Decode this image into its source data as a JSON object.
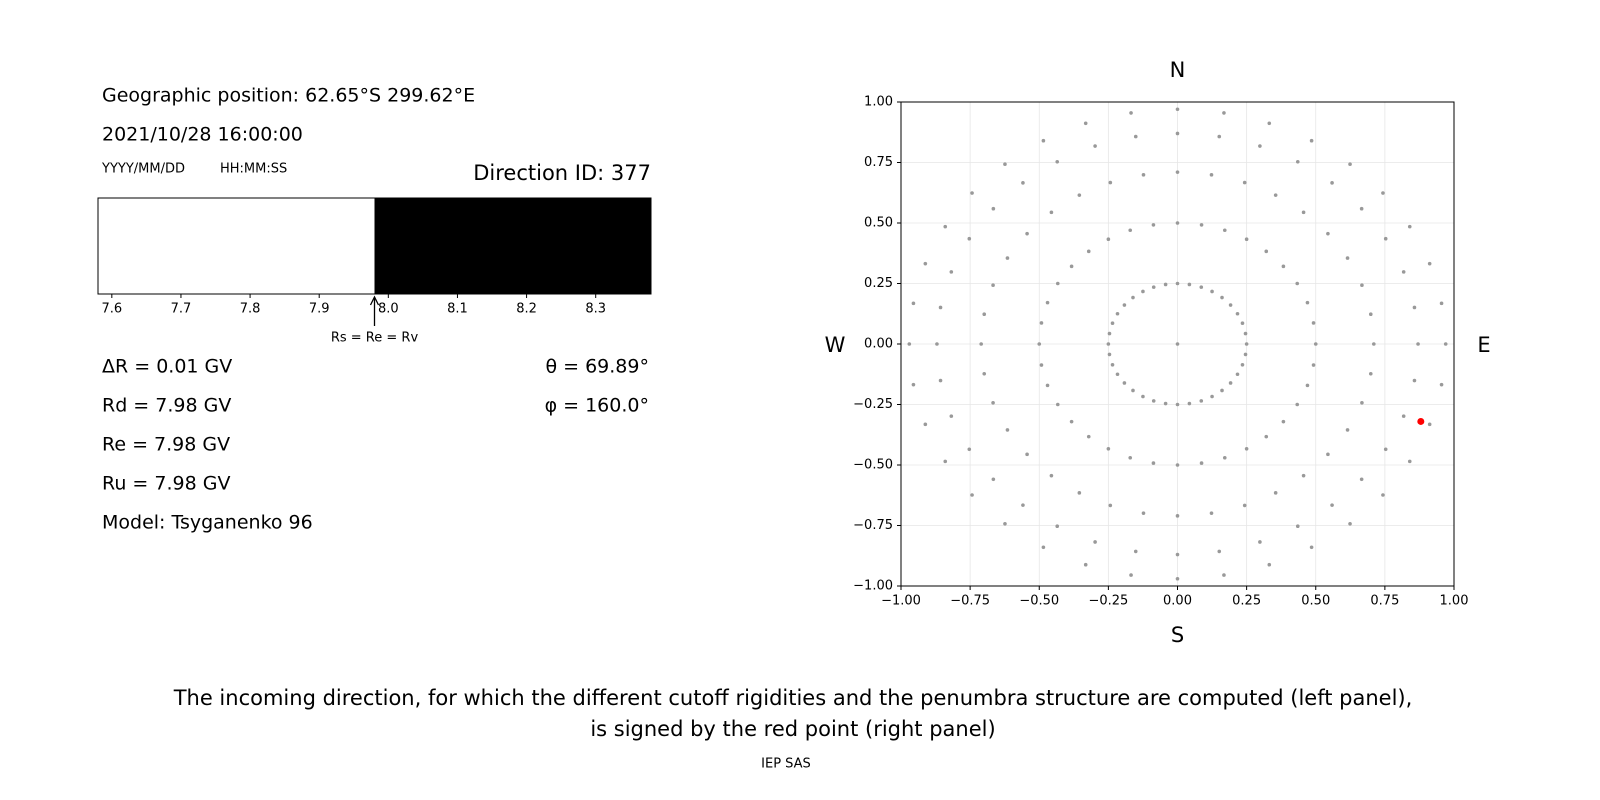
{
  "info": {
    "position": "Geographic position: 62.65°S 299.62°E",
    "datetime": "2021/10/28 16:00:00",
    "date_format": "YYYY/MM/DD",
    "time_format": "HH:MM:SS",
    "direction": "Direction ID: 377",
    "lines": [
      "ΔR = 0.01 GV",
      "Rd = 7.98 GV",
      "Re = 7.98 GV",
      "Ru = 7.98 GV",
      "Model: Tsyganenko 96"
    ],
    "angles": [
      "θ = 69.89°",
      "φ = 160.0°"
    ]
  },
  "chart_data": [
    {
      "type": "penumbra",
      "xlim": [
        7.58,
        8.38
      ],
      "xticks": [
        7.6,
        7.7,
        7.8,
        7.9,
        {
          "value": 8,
          "label": "8.0"
        },
        8.1,
        8.2,
        8.3
      ],
      "boundary": 7.98,
      "boundary_label": "Rs = Re = Rv",
      "colors": [
        "#ffffff",
        "#000000"
      ]
    },
    {
      "type": "scatter",
      "xlim": [
        -1,
        1
      ],
      "ylim": [
        -1,
        1
      ],
      "xticks": [
        {
          "value": -1,
          "label": "−1.00"
        },
        {
          "value": -0.75,
          "label": "−0.75"
        },
        {
          "value": -0.5,
          "label": "−0.50"
        },
        {
          "value": -0.25,
          "label": "−0.25"
        },
        {
          "value": 0,
          "label": "0.00"
        },
        {
          "value": 0.25,
          "label": "0.25"
        },
        {
          "value": 0.5,
          "label": "0.50"
        },
        {
          "value": 0.75,
          "label": "0.75"
        },
        {
          "value": 1,
          "label": "1.00"
        }
      ],
      "yticks": [
        {
          "value": -1,
          "label": "−1.00"
        },
        {
          "value": -0.75,
          "label": "−0.75"
        },
        {
          "value": -0.5,
          "label": "−0.50"
        },
        {
          "value": -0.25,
          "label": "−0.25"
        },
        {
          "value": 0,
          "label": "0.00"
        },
        {
          "value": 0.25,
          "label": "0.25"
        },
        {
          "value": 0.5,
          "label": "0.50"
        },
        {
          "value": 0.75,
          "label": "0.75"
        },
        {
          "value": 1,
          "label": "1.00"
        }
      ],
      "grid": true,
      "compass": {
        "N": "N",
        "S": "S",
        "W": "W",
        "E": "E"
      },
      "series": [
        {
          "color": "#999999",
          "x": [
            0,
            0,
            0.043,
            0.086,
            0.125,
            0.161,
            0.192,
            0.217,
            0.235,
            0.246,
            0.25,
            0.246,
            0.235,
            0.217,
            0.192,
            0.161,
            0.125,
            0.086,
            0.043,
            0,
            -0.043,
            -0.086,
            -0.125,
            -0.161,
            -0.192,
            -0.217,
            -0.235,
            -0.246,
            -0.25,
            -0.246,
            -0.235,
            -0.217,
            -0.192,
            -0.161,
            -0.125,
            -0.086,
            -0.043,
            0,
            0.087,
            0.171,
            0.25,
            0.321,
            0.383,
            0.433,
            0.47,
            0.492,
            0.5,
            0.492,
            0.47,
            0.433,
            0.383,
            0.321,
            0.25,
            0.171,
            0.087,
            0,
            -0.087,
            -0.171,
            -0.25,
            -0.321,
            -0.383,
            -0.433,
            -0.47,
            -0.492,
            -0.5,
            -0.492,
            -0.47,
            -0.433,
            -0.383,
            -0.321,
            -0.25,
            -0.171,
            -0.087,
            0,
            0.123,
            0.243,
            0.355,
            0.456,
            0.544,
            0.615,
            0.667,
            0.699,
            0.71,
            0.699,
            0.667,
            0.615,
            0.544,
            0.456,
            0.355,
            0.243,
            0.123,
            0,
            -0.123,
            -0.243,
            -0.355,
            -0.456,
            -0.544,
            -0.615,
            -0.667,
            -0.699,
            -0.71,
            -0.699,
            -0.667,
            -0.615,
            -0.544,
            -0.456,
            -0.355,
            -0.243,
            -0.123,
            0,
            0.151,
            0.298,
            0.435,
            0.559,
            0.666,
            0.753,
            0.818,
            0.857,
            0.87,
            0.857,
            0.818,
            0.753,
            0.666,
            0.559,
            0.435,
            0.298,
            0.151,
            0,
            -0.151,
            -0.298,
            -0.435,
            -0.559,
            -0.666,
            -0.753,
            -0.818,
            -0.857,
            -0.87,
            -0.857,
            -0.818,
            -0.753,
            -0.666,
            -0.559,
            -0.435,
            -0.298,
            -0.151,
            0,
            0.168,
            0.332,
            0.485,
            0.624,
            0.743,
            0.84,
            0.912,
            0.955,
            0.97,
            0.955,
            0.912,
            0.84,
            0.743,
            0.624,
            0.485,
            0.332,
            0.168,
            0,
            -0.168,
            -0.332,
            -0.485,
            -0.624,
            -0.743,
            -0.84,
            -0.912,
            -0.955,
            -0.97,
            -0.955,
            -0.912,
            -0.84,
            -0.743,
            -0.624,
            -0.485,
            -0.332,
            -0.168
          ],
          "y": [
            0,
            0.25,
            0.246,
            0.235,
            0.217,
            0.192,
            0.161,
            0.125,
            0.086,
            0.043,
            0,
            -0.043,
            -0.086,
            -0.125,
            -0.161,
            -0.192,
            -0.217,
            -0.235,
            -0.246,
            -0.25,
            -0.246,
            -0.235,
            -0.217,
            -0.192,
            -0.161,
            -0.125,
            -0.086,
            -0.043,
            0,
            0.043,
            0.086,
            0.125,
            0.161,
            0.192,
            0.217,
            0.235,
            0.246,
            0.5,
            0.492,
            0.47,
            0.433,
            0.383,
            0.321,
            0.25,
            0.171,
            0.087,
            0,
            -0.087,
            -0.171,
            -0.25,
            -0.321,
            -0.383,
            -0.433,
            -0.47,
            -0.492,
            -0.5,
            -0.492,
            -0.47,
            -0.433,
            -0.383,
            -0.321,
            -0.25,
            -0.171,
            -0.087,
            0,
            0.087,
            0.171,
            0.25,
            0.321,
            0.383,
            0.433,
            0.47,
            0.492,
            0.71,
            0.699,
            0.667,
            0.615,
            0.544,
            0.456,
            0.355,
            0.243,
            0.123,
            0,
            -0.123,
            -0.243,
            -0.355,
            -0.456,
            -0.544,
            -0.615,
            -0.667,
            -0.699,
            -0.71,
            -0.699,
            -0.667,
            -0.615,
            -0.544,
            -0.456,
            -0.355,
            -0.243,
            -0.123,
            0,
            0.123,
            0.243,
            0.355,
            0.456,
            0.544,
            0.615,
            0.667,
            0.699,
            0.87,
            0.857,
            0.818,
            0.753,
            0.666,
            0.559,
            0.435,
            0.298,
            0.151,
            0,
            -0.151,
            -0.298,
            -0.435,
            -0.559,
            -0.666,
            -0.753,
            -0.818,
            -0.857,
            -0.87,
            -0.857,
            -0.818,
            -0.753,
            -0.666,
            -0.559,
            -0.435,
            -0.298,
            -0.151,
            0,
            0.151,
            0.298,
            0.435,
            0.559,
            0.666,
            0.753,
            0.818,
            0.857,
            0.97,
            0.955,
            0.912,
            0.84,
            0.743,
            0.624,
            0.485,
            0.332,
            0.168,
            0,
            -0.168,
            -0.332,
            -0.485,
            -0.624,
            -0.743,
            -0.84,
            -0.912,
            -0.955,
            -0.97,
            -0.955,
            -0.912,
            -0.84,
            -0.743,
            -0.624,
            -0.485,
            -0.332,
            -0.168,
            0,
            0.168,
            0.332,
            0.485,
            0.624,
            0.743,
            0.84,
            0.912,
            0.955
          ]
        },
        {
          "color": "#ff0000",
          "x": [
            0.88
          ],
          "y": [
            -0.32
          ]
        }
      ]
    }
  ],
  "caption": [
    "The incoming direction, for which the different cutoff rigidities and the penumbra structure are computed (left panel),",
    "is signed by the red point (right panel)"
  ],
  "footer": "IEP SAS"
}
